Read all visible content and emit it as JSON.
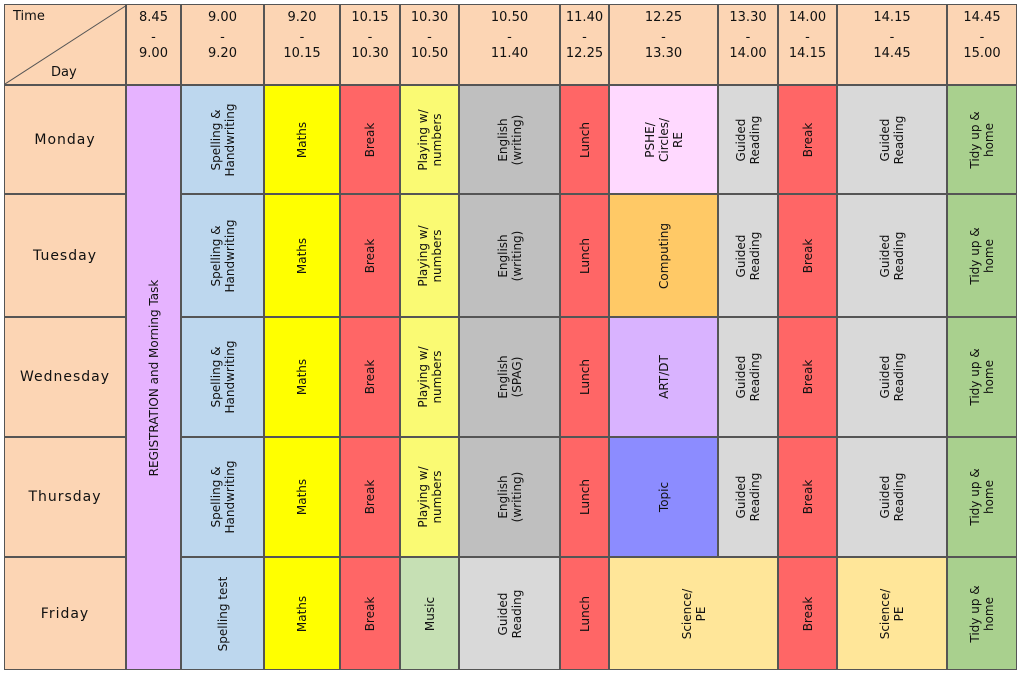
{
  "header": {
    "time_label": "Time",
    "day_label": "Day",
    "slots": [
      {
        "start": "8.45",
        "dash": "-",
        "end": "9.00"
      },
      {
        "start": "9.00",
        "dash": "-",
        "end": "9.20"
      },
      {
        "start": "9.20",
        "dash": "-",
        "end": "10.15"
      },
      {
        "start": "10.15",
        "dash": "-",
        "end": "10.30"
      },
      {
        "start": "10.30",
        "dash": "-",
        "end": "10.50"
      },
      {
        "start": "10.50",
        "dash": "-",
        "end": "11.40"
      },
      {
        "start": "11.40",
        "dash": "-",
        "end": "12.25"
      },
      {
        "start": "12.25",
        "dash": "-",
        "end": "13.30"
      },
      {
        "start": "13.30",
        "dash": "-",
        "end": "14.00"
      },
      {
        "start": "14.00",
        "dash": "-",
        "end": "14.15"
      },
      {
        "start": "14.15",
        "dash": "-",
        "end": "14.45"
      },
      {
        "start": "14.45",
        "dash": "-",
        "end": "15.00"
      }
    ]
  },
  "days": [
    "Monday",
    "Tuesday",
    "Wednesday",
    "Thursday",
    "Friday"
  ],
  "registration": {
    "text": "REGISTRATION and Morning Task",
    "color": "#e6b3ff"
  },
  "colors": {
    "header": "#fcd5b4",
    "blue": "#bdd7ee",
    "yellow": "#ffff00",
    "red": "#ff6666",
    "lightyellow": "#fafa73",
    "grey": "#bfbfbf",
    "lightgrey": "#d9d9d9",
    "pink": "#ffd9ff",
    "orange": "#ffc966",
    "lavender": "#d9b3ff",
    "periwinkle": "#8c8cff",
    "green": "#a9d08e",
    "palegreen": "#c6e0b4",
    "cream": "#ffe699"
  },
  "rows": [
    [
      {
        "text": "Spelling &\nHandwriting",
        "color": "#bdd7ee"
      },
      {
        "text": "Maths",
        "color": "#ffff00"
      },
      {
        "text": "Break",
        "color": "#ff6666"
      },
      {
        "text": "Playing w/\nnumbers",
        "color": "#fafa73"
      },
      {
        "text": "English\n(writing)",
        "color": "#bfbfbf"
      },
      {
        "text": "Lunch",
        "color": "#ff6666"
      },
      {
        "text": "PSHE/\nCircles/\nRE",
        "color": "#ffd9ff"
      },
      {
        "text": "Guided\nReading",
        "color": "#d9d9d9"
      },
      {
        "text": "Break",
        "color": "#ff6666"
      },
      {
        "text": "Guided\nReading",
        "color": "#d9d9d9"
      },
      {
        "text": "Tidy up &\nhome",
        "color": "#a9d08e"
      }
    ],
    [
      {
        "text": "Spelling &\nHandwriting",
        "color": "#bdd7ee"
      },
      {
        "text": "Maths",
        "color": "#ffff00"
      },
      {
        "text": "Break",
        "color": "#ff6666"
      },
      {
        "text": "Playing w/\nnumbers",
        "color": "#fafa73"
      },
      {
        "text": "English\n(writing)",
        "color": "#bfbfbf"
      },
      {
        "text": "Lunch",
        "color": "#ff6666"
      },
      {
        "text": "Computing",
        "color": "#ffc966"
      },
      {
        "text": "Guided\nReading",
        "color": "#d9d9d9"
      },
      {
        "text": "Break",
        "color": "#ff6666"
      },
      {
        "text": "Guided\nReading",
        "color": "#d9d9d9"
      },
      {
        "text": "Tidy up &\nhome",
        "color": "#a9d08e"
      }
    ],
    [
      {
        "text": "Spelling &\nHandwriting",
        "color": "#bdd7ee"
      },
      {
        "text": "Maths",
        "color": "#ffff00"
      },
      {
        "text": "Break",
        "color": "#ff6666"
      },
      {
        "text": "Playing w/\nnumbers",
        "color": "#fafa73"
      },
      {
        "text": "English\n(SPAG)",
        "color": "#bfbfbf"
      },
      {
        "text": "Lunch",
        "color": "#ff6666"
      },
      {
        "text": "ART/DT",
        "color": "#d9b3ff"
      },
      {
        "text": "Guided\nReading",
        "color": "#d9d9d9"
      },
      {
        "text": "Break",
        "color": "#ff6666"
      },
      {
        "text": "Guided\nReading",
        "color": "#d9d9d9"
      },
      {
        "text": "Tidy up &\nhome",
        "color": "#a9d08e"
      }
    ],
    [
      {
        "text": "Spelling &\nHandwriting",
        "color": "#bdd7ee"
      },
      {
        "text": "Maths",
        "color": "#ffff00"
      },
      {
        "text": "Break",
        "color": "#ff6666"
      },
      {
        "text": "Playing w/\nnumbers",
        "color": "#fafa73"
      },
      {
        "text": "English\n(writing)",
        "color": "#bfbfbf"
      },
      {
        "text": "Lunch",
        "color": "#ff6666"
      },
      {
        "text": "Topic",
        "color": "#8c8cff"
      },
      {
        "text": "Guided\nReading",
        "color": "#d9d9d9"
      },
      {
        "text": "Break",
        "color": "#ff6666"
      },
      {
        "text": "Guided\nReading",
        "color": "#d9d9d9"
      },
      {
        "text": "Tidy up &\nhome",
        "color": "#a9d08e"
      }
    ],
    [
      {
        "text": "Spelling test",
        "color": "#bdd7ee"
      },
      {
        "text": "Maths",
        "color": "#ffff00"
      },
      {
        "text": "Break",
        "color": "#ff6666"
      },
      {
        "text": "Music",
        "color": "#c6e0b4"
      },
      {
        "text": "Guided\nReading",
        "color": "#d9d9d9"
      },
      {
        "text": "Lunch",
        "color": "#ff6666"
      },
      {
        "text": "Science/\nPE",
        "color": "#ffe699",
        "span": 2
      },
      {
        "text": "Break",
        "color": "#ff6666"
      },
      {
        "text": "Science/\nPE",
        "color": "#ffe699"
      },
      {
        "text": "Tidy up &\nhome",
        "color": "#a9d08e"
      }
    ]
  ]
}
